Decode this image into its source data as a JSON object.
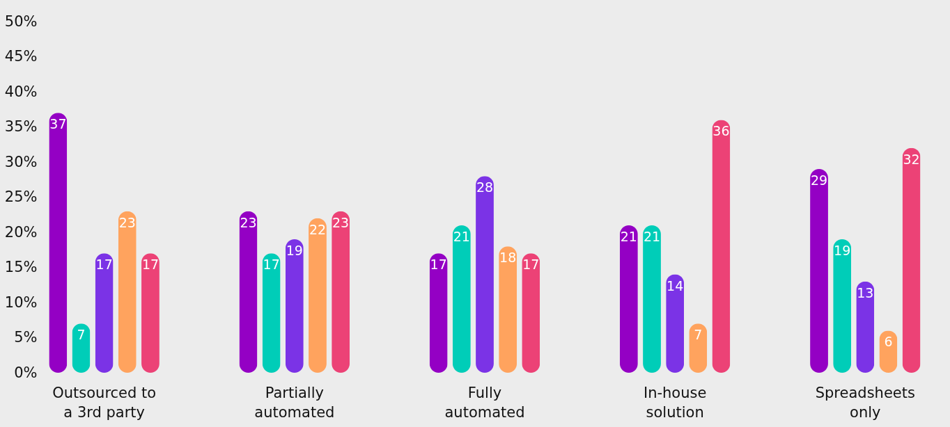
{
  "chart_data": {
    "type": "bar",
    "categories": [
      "Outsourced to\na 3rd party",
      "Partially\nautomated",
      "Fully\nautomated",
      "In-house\nsolution",
      "Spreadsheets\nonly"
    ],
    "series": [
      {
        "color": "#9400c4",
        "values": [
          37,
          23,
          17,
          21,
          29
        ]
      },
      {
        "color": "#00cdb8",
        "values": [
          7,
          17,
          21,
          21,
          19
        ]
      },
      {
        "color": "#7b33e6",
        "values": [
          17,
          19,
          28,
          14,
          13
        ]
      },
      {
        "color": "#ffa35e",
        "values": [
          23,
          22,
          18,
          7,
          6
        ]
      },
      {
        "color": "#ec4276",
        "values": [
          17,
          23,
          17,
          36,
          32
        ]
      }
    ],
    "ylim": [
      0,
      50
    ],
    "yticks": [
      {
        "value": 0,
        "label": "0%"
      },
      {
        "value": 5,
        "label": "5%"
      },
      {
        "value": 10,
        "label": "10%"
      },
      {
        "value": 15,
        "label": "15%"
      },
      {
        "value": 20,
        "label": "20%"
      },
      {
        "value": 25,
        "label": "25%"
      },
      {
        "value": 30,
        "label": "30%"
      },
      {
        "value": 35,
        "label": "35%"
      },
      {
        "value": 40,
        "label": "40%"
      },
      {
        "value": 45,
        "label": "45%"
      },
      {
        "value": 50,
        "label": "50%"
      }
    ],
    "data_labels": true,
    "grid": false,
    "legend": false
  }
}
